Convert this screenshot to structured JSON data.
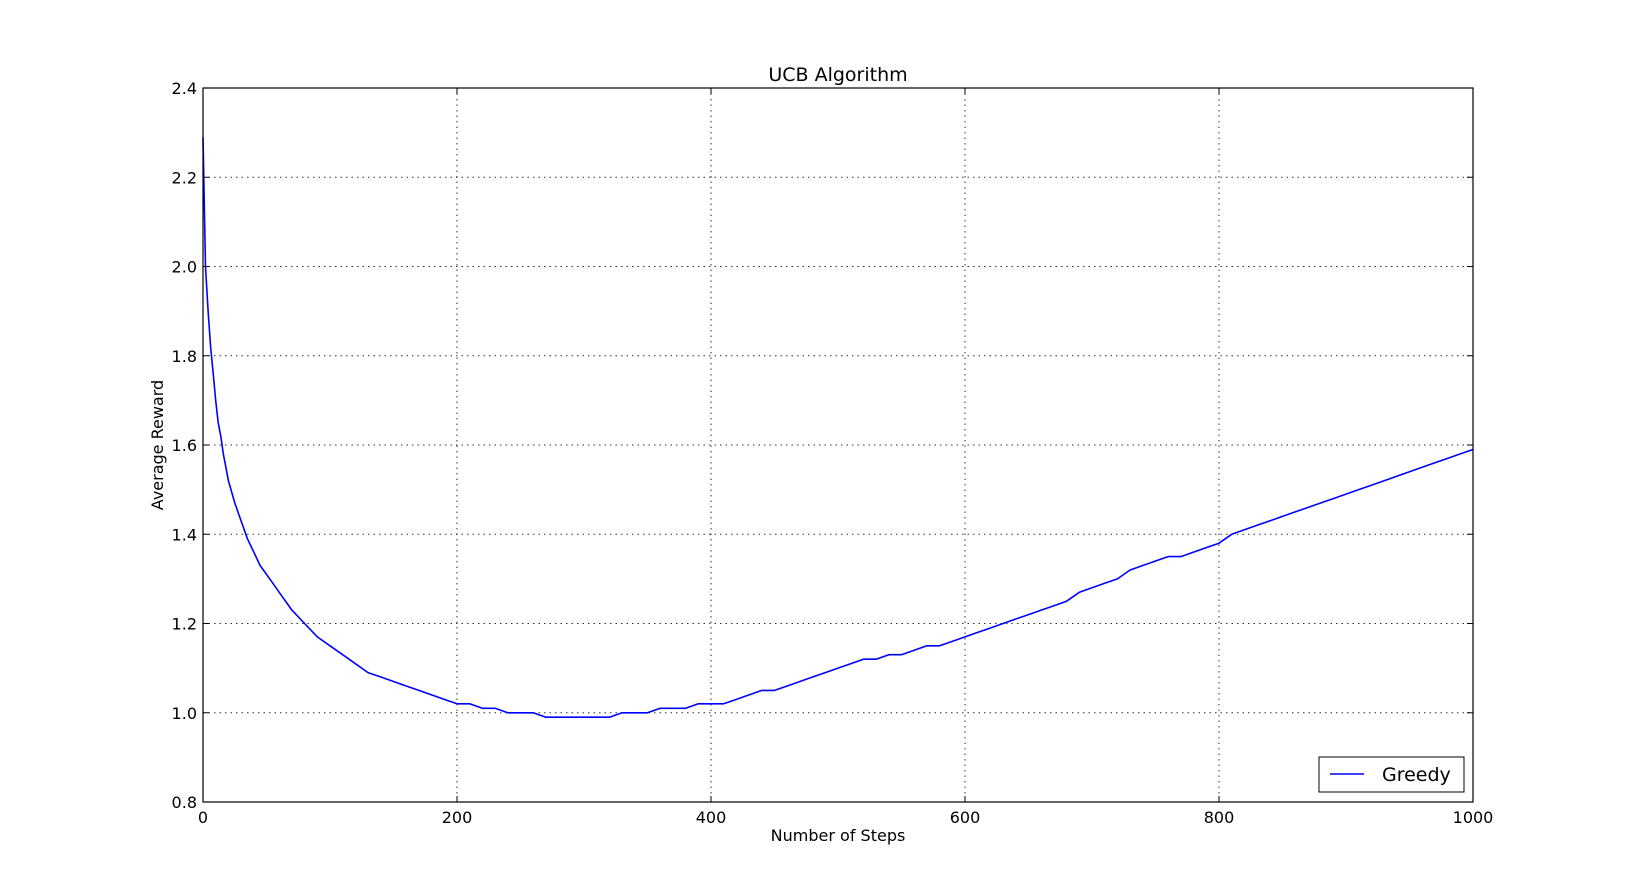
{
  "chart_data": {
    "type": "line",
    "title": "UCB Algorithm",
    "xlabel": "Number of Steps",
    "ylabel": "Average Reward",
    "xlim": [
      0,
      1000
    ],
    "ylim": [
      0.8,
      2.4
    ],
    "xticks": [
      0,
      200,
      400,
      600,
      800,
      1000
    ],
    "xtick_labels": [
      "0",
      "200",
      "400",
      "600",
      "800",
      "1000"
    ],
    "yticks": [
      0.8,
      1.0,
      1.2,
      1.4,
      1.6,
      1.8,
      2.0,
      2.2,
      2.4
    ],
    "ytick_labels": [
      "0.8",
      "1.0",
      "1.2",
      "1.4",
      "1.6",
      "1.8",
      "2.0",
      "2.2",
      "2.4"
    ],
    "grid": true,
    "legend_position": "lower-right",
    "series": [
      {
        "name": "Greedy",
        "color": "#0000ff",
        "x": [
          0,
          2,
          4,
          6,
          8,
          10,
          12,
          14,
          16,
          18,
          20,
          25,
          30,
          35,
          40,
          45,
          50,
          55,
          60,
          70,
          80,
          90,
          100,
          110,
          120,
          130,
          140,
          150,
          160,
          170,
          180,
          190,
          200,
          210,
          220,
          230,
          240,
          250,
          260,
          270,
          280,
          290,
          300,
          310,
          320,
          330,
          340,
          350,
          360,
          370,
          380,
          390,
          400,
          410,
          420,
          430,
          440,
          450,
          460,
          470,
          480,
          490,
          500,
          510,
          520,
          530,
          540,
          550,
          560,
          570,
          580,
          590,
          600,
          610,
          620,
          630,
          640,
          650,
          660,
          670,
          680,
          690,
          700,
          710,
          720,
          730,
          740,
          750,
          760,
          770,
          780,
          790,
          800,
          810,
          820,
          830,
          840,
          850,
          860,
          870,
          880,
          890,
          900,
          910,
          920,
          930,
          940,
          950,
          960,
          970,
          980,
          990,
          1000
        ],
        "values": [
          2.29,
          2.0,
          1.9,
          1.82,
          1.76,
          1.7,
          1.65,
          1.62,
          1.58,
          1.55,
          1.52,
          1.47,
          1.43,
          1.39,
          1.36,
          1.33,
          1.31,
          1.29,
          1.27,
          1.23,
          1.2,
          1.17,
          1.15,
          1.13,
          1.11,
          1.09,
          1.08,
          1.07,
          1.06,
          1.05,
          1.04,
          1.03,
          1.02,
          1.02,
          1.01,
          1.01,
          1.0,
          1.0,
          1.0,
          0.99,
          0.99,
          0.99,
          0.99,
          0.99,
          0.99,
          1.0,
          1.0,
          1.0,
          1.01,
          1.01,
          1.01,
          1.02,
          1.02,
          1.02,
          1.03,
          1.04,
          1.05,
          1.05,
          1.06,
          1.07,
          1.08,
          1.09,
          1.1,
          1.11,
          1.12,
          1.12,
          1.13,
          1.13,
          1.14,
          1.15,
          1.15,
          1.16,
          1.17,
          1.18,
          1.19,
          1.2,
          1.21,
          1.22,
          1.23,
          1.24,
          1.25,
          1.27,
          1.28,
          1.29,
          1.3,
          1.32,
          1.33,
          1.34,
          1.35,
          1.35,
          1.36,
          1.37,
          1.38,
          1.4,
          1.41,
          1.42,
          1.43,
          1.44,
          1.45,
          1.46,
          1.47,
          1.48,
          1.49,
          1.5,
          1.51,
          1.52,
          1.53,
          1.54,
          1.55,
          1.56,
          1.57,
          1.58,
          1.59
        ]
      }
    ]
  }
}
